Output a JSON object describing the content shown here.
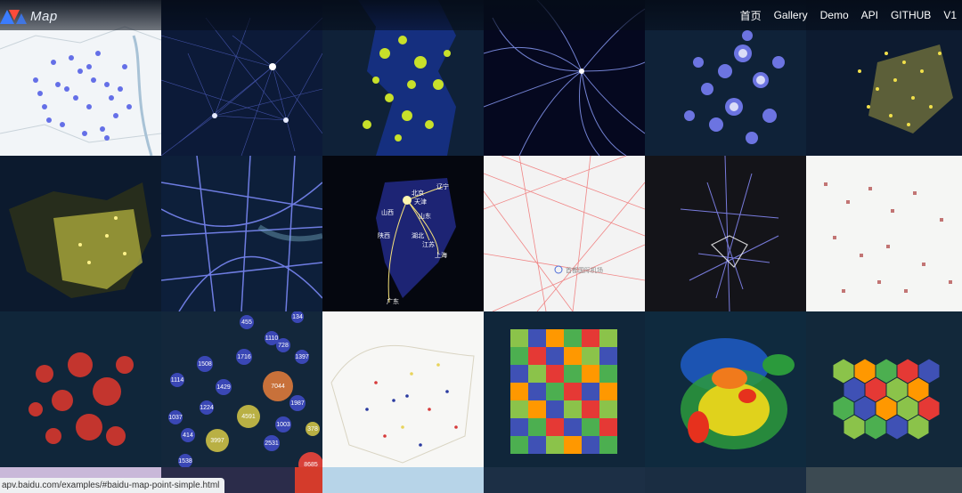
{
  "logo": {
    "text": "Map",
    "icon": "mapv-logo-icon"
  },
  "nav": {
    "items": [
      "首页",
      "Gallery",
      "Demo",
      "API",
      "GITHUB",
      "V1"
    ]
  },
  "status_url": "apv.baidu.com/examples/#baidu-map-point-simple.html",
  "tiles": {
    "bubbles": [
      "455",
      "134",
      "1110",
      "728",
      "1716",
      "1397",
      "1508",
      "1114",
      "1429",
      "7044",
      "1987",
      "1224",
      "4591",
      "1037",
      "1003",
      "378",
      "414",
      "3997",
      "2531",
      "1538",
      "8685"
    ],
    "airport_label": "首都国际机场",
    "provinces": [
      "辽宁",
      "北京",
      "天津",
      "山西",
      "山东",
      "陕西",
      "湖北",
      "江苏",
      "上海",
      "广东"
    ]
  },
  "colors": {
    "background": "#0b1a2b",
    "accent": "#4f6cff"
  }
}
